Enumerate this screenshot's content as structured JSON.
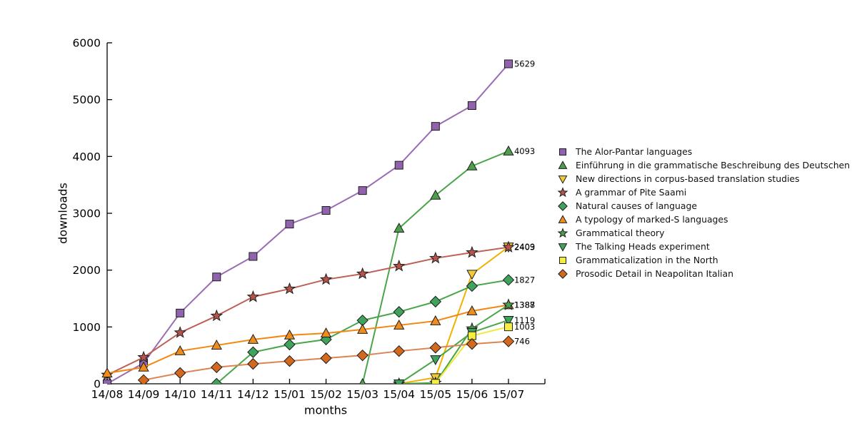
{
  "chart_data": {
    "type": "line",
    "title": "",
    "xlabel": "months",
    "ylabel": "downloads",
    "x_categories": [
      "14/08",
      "14/09",
      "14/10",
      "14/11",
      "14/12",
      "15/01",
      "15/02",
      "15/03",
      "15/04",
      "15/05",
      "15/06",
      "15/07"
    ],
    "ylim": [
      0,
      6000
    ],
    "yticks": [
      0,
      1000,
      2000,
      3000,
      4000,
      5000,
      6000
    ],
    "grid": false,
    "legend_position": "right-outside",
    "series": [
      {
        "name": "The Alor-Pantar languages",
        "marker": "square",
        "line_color": "#9a6cb4",
        "marker_color": "#9163ae",
        "values": [
          0,
          365,
          1245,
          1880,
          2240,
          2810,
          3050,
          3400,
          3845,
          4530,
          4895,
          5629
        ],
        "end_label": "5629"
      },
      {
        "name": "Einführung in die grammatische Beschreibung des Deutschen",
        "marker": "triangle-up",
        "line_color": "#4aa44a",
        "marker_color": "#4d9f4d",
        "values": [
          null,
          null,
          null,
          null,
          null,
          null,
          null,
          0,
          2735,
          3315,
          3830,
          4093
        ],
        "end_label": "4093"
      },
      {
        "name": "New directions in corpus-based translation studies",
        "marker": "triangle-down",
        "line_color": "#f2b202",
        "marker_color": "#f2ca36",
        "values": [
          null,
          null,
          null,
          null,
          null,
          null,
          null,
          null,
          0,
          110,
          1930,
          2409
        ],
        "end_label": "2409"
      },
      {
        "name": "A grammar of Pite Saami",
        "marker": "star",
        "line_color": "#bd6156",
        "marker_color": "#b4544b",
        "values": [
          155,
          465,
          900,
          1195,
          1530,
          1670,
          1835,
          1935,
          2070,
          2210,
          2310,
          2403
        ],
        "end_label": "2403"
      },
      {
        "name": "Natural causes of language",
        "marker": "diamond",
        "line_color": "#4aa44a",
        "marker_color": "#3fa35c",
        "values": [
          null,
          null,
          null,
          0,
          555,
          690,
          780,
          1115,
          1265,
          1445,
          1720,
          1827
        ],
        "end_label": "1827"
      },
      {
        "name": "A typology of marked-S languages",
        "marker": "triangle-up",
        "line_color": "#f5870f",
        "marker_color": "#ef8c1e",
        "values": [
          185,
          290,
          577,
          677,
          778,
          855,
          890,
          955,
          1030,
          1105,
          1280,
          1387
        ],
        "end_label": "1387"
      },
      {
        "name": "Grammatical theory",
        "marker": "star",
        "line_color": "#4aa44a",
        "marker_color": "#4d9f4d",
        "values": [
          null,
          null,
          null,
          null,
          null,
          null,
          null,
          null,
          0,
          15,
          970,
          1388
        ],
        "end_label": "1388"
      },
      {
        "name": "The Talking Heads experiment",
        "marker": "triangle-down",
        "line_color": "#4aa44a",
        "marker_color": "#3fa35c",
        "values": [
          null,
          null,
          null,
          null,
          null,
          null,
          null,
          null,
          0,
          427,
          905,
          1119
        ],
        "end_label": "1119"
      },
      {
        "name": "Grammaticalization in the North",
        "marker": "square",
        "line_color": "#f0e93c",
        "marker_color": "#f5ee3e",
        "values": [
          null,
          null,
          null,
          null,
          null,
          null,
          null,
          null,
          null,
          10,
          845,
          1003
        ],
        "end_label": "1003"
      },
      {
        "name": "Prosodic Detail in Neapolitan Italian",
        "marker": "diamond",
        "line_color": "#dd8452",
        "marker_color": "#d2691e",
        "values": [
          null,
          65,
          190,
          290,
          350,
          400,
          450,
          500,
          575,
          635,
          700,
          746
        ],
        "end_label": "746"
      }
    ]
  }
}
